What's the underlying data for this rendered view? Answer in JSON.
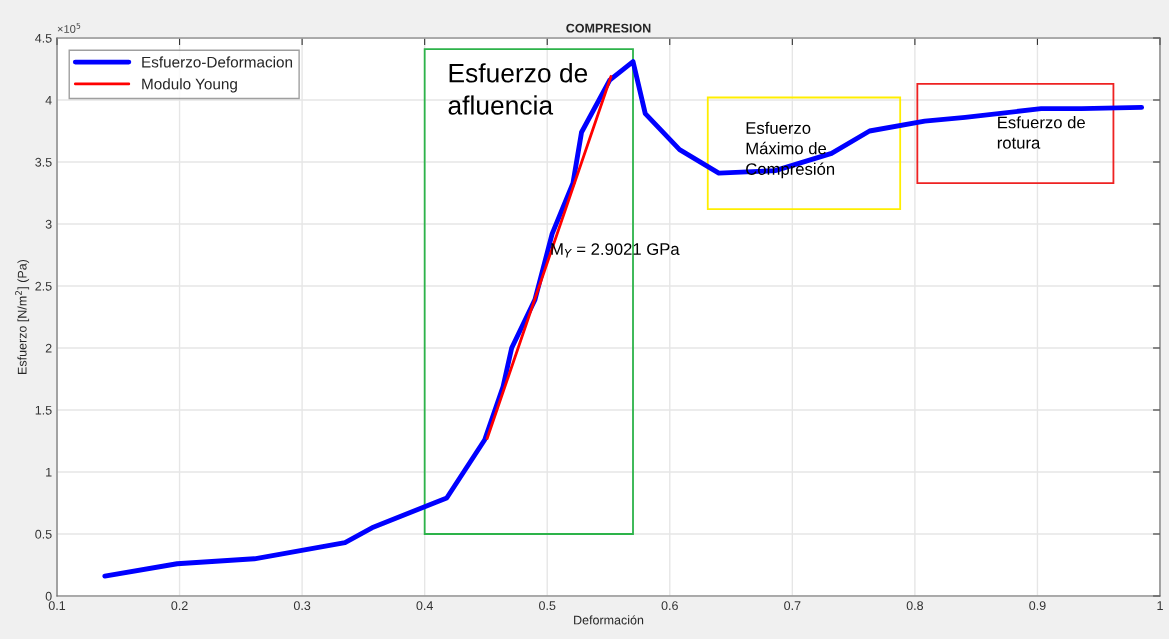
{
  "chart_data": {
    "type": "line",
    "title": "COMPRESION",
    "xlabel": "Deformación",
    "ylabel": "Esfuerzo [N/m$^{2}$] (Pa)",
    "xlim": [
      0.1,
      1
    ],
    "xticks": [
      0.1,
      0.2,
      0.3,
      0.4,
      0.5,
      0.6,
      0.7,
      0.8,
      0.9,
      1
    ],
    "ylim": [
      0,
      4.5
    ],
    "yticks": [
      0,
      0.5,
      1,
      1.5,
      2,
      2.5,
      3,
      3.5,
      4,
      4.5
    ],
    "grid": true,
    "legend": "top left",
    "series": [
      {
        "name": "Esfuerzo-Deformacion",
        "color": "#0000ff",
        "x": [
          0.139,
          0.198,
          0.261,
          0.335,
          0.357,
          0.4,
          0.418,
          0.449,
          0.464,
          0.471,
          0.49,
          0.504,
          0.521,
          0.528,
          0.551,
          0.57,
          0.58,
          0.608,
          0.64,
          0.686,
          0.732,
          0.763,
          0.808,
          0.841,
          0.903,
          0.936,
          0.985
        ],
        "values": [
          0.16,
          0.26,
          0.3,
          0.43,
          0.55,
          0.72,
          0.79,
          1.26,
          1.69,
          2.0,
          2.39,
          2.92,
          3.33,
          3.74,
          4.16,
          4.31,
          3.89,
          3.6,
          3.41,
          3.43,
          3.57,
          3.75,
          3.83,
          3.86,
          3.93,
          3.93,
          3.94
        ]
      },
      {
        "name": "Modulo Young",
        "color": "#ff0000",
        "x": [
          0.451,
          0.552
        ],
        "values": [
          1.27,
          4.19
        ]
      }
    ],
    "annotations": [
      "×10$^{5}$",
      "Esfuerzo de\nafluencia",
      "Esfuerzo\nMáximo de\nCompresión",
      "Esfuerzo de\nrotura",
      "M$_{Y}$ = 2.9021 GPa"
    ]
  }
}
